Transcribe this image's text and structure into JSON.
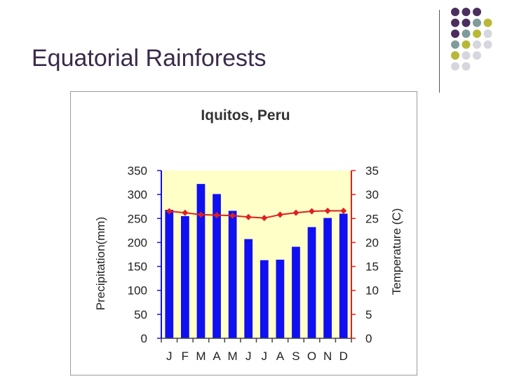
{
  "slide": {
    "title": "Equatorial Rainforests"
  },
  "decor": {
    "dot_colors": [
      "#4a2f5e",
      "#7f9c9c",
      "#b8b837",
      "#d6d6de"
    ]
  },
  "chart_data": {
    "type": "bar+line",
    "title": "Iquitos, Peru",
    "categories": [
      "J",
      "F",
      "M",
      "A",
      "M",
      "J",
      "J",
      "A",
      "S",
      "O",
      "N",
      "D"
    ],
    "series": [
      {
        "name": "Precipitation(mm)",
        "type": "bar",
        "axis": "left",
        "color": "#1010f0",
        "values": [
          268,
          255,
          322,
          301,
          266,
          207,
          163,
          164,
          191,
          232,
          251,
          260
        ]
      },
      {
        "name": "Temperature (C)",
        "type": "line",
        "axis": "right",
        "color": "#e02020",
        "values": [
          26.5,
          26.2,
          25.8,
          25.7,
          25.6,
          25.3,
          25.1,
          25.8,
          26.2,
          26.5,
          26.6,
          26.6
        ]
      }
    ],
    "ylabel_left": "Precipitation(mm)",
    "ylabel_right": "Temperature (C)",
    "ylim_left": [
      0,
      350
    ],
    "ylim_right": [
      0,
      35
    ],
    "yticks_left": [
      "0",
      "50",
      "100",
      "150",
      "200",
      "250",
      "300",
      "350"
    ],
    "yticks_right": [
      "0",
      "5",
      "10",
      "15",
      "20",
      "25",
      "30",
      "35"
    ],
    "plot_background": "#ffffc8",
    "left_axis_color": "#1010f0",
    "right_axis_color": "#e02020",
    "grid": false,
    "legend": "none"
  }
}
